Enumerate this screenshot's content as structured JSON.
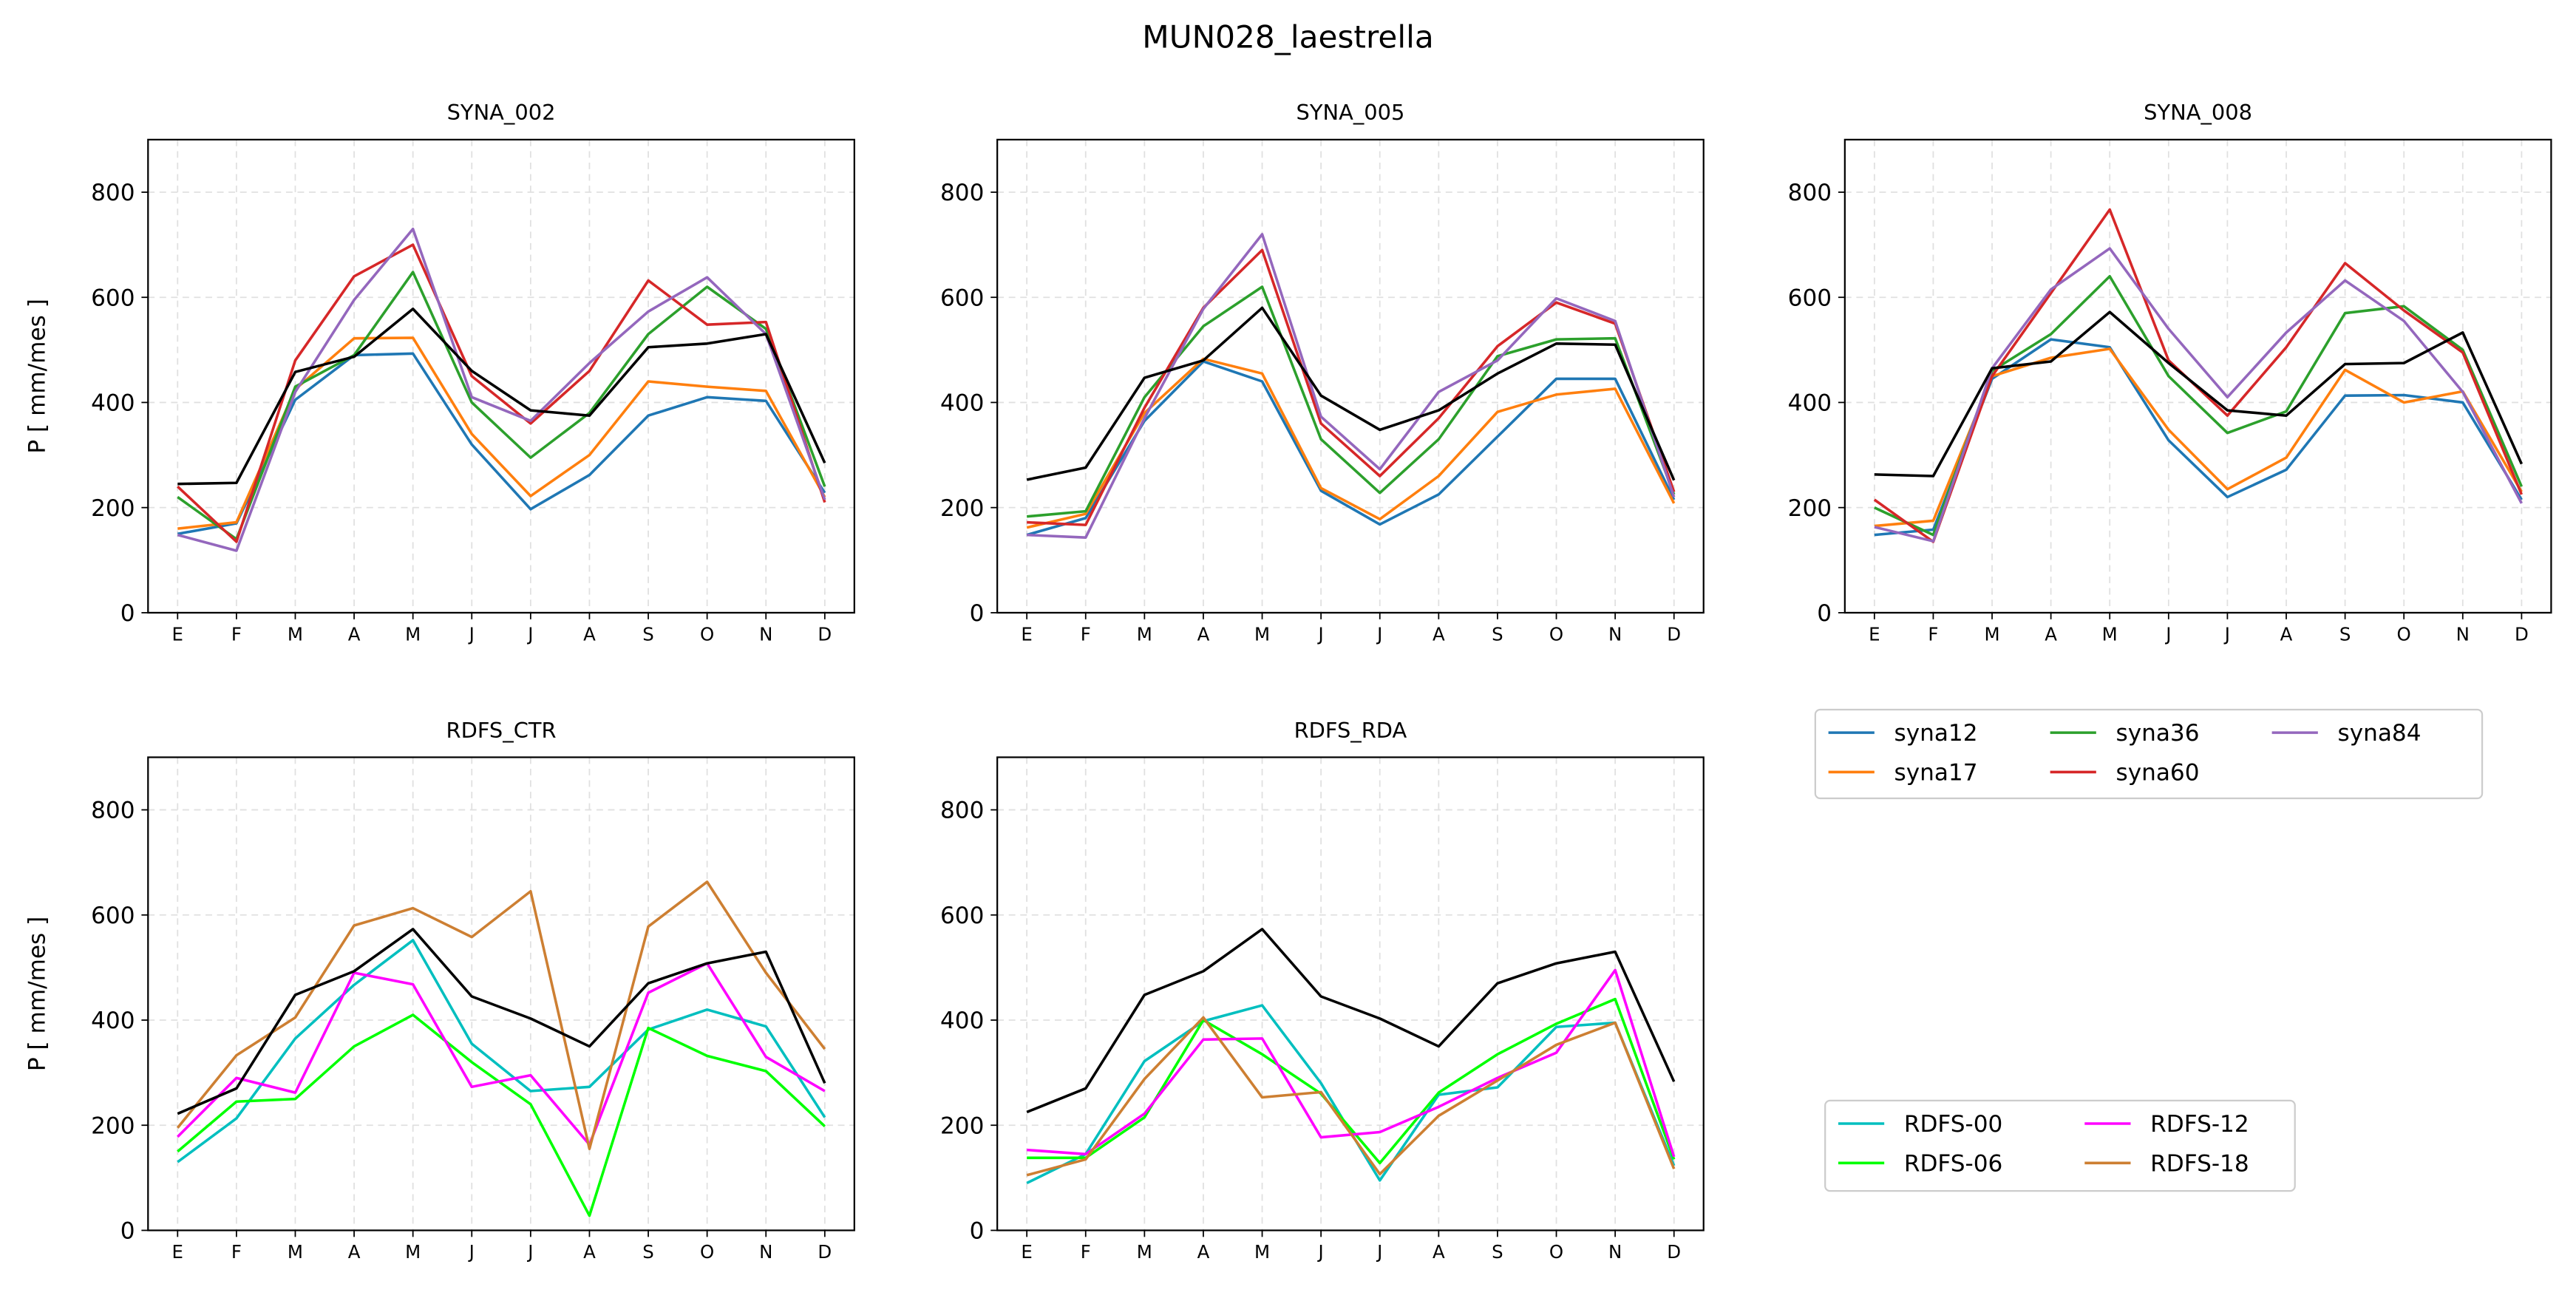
{
  "figure_title": "MUN028_laestrella",
  "colors": {
    "syna12": "#1f77b4",
    "syna17": "#ff7f0e",
    "syna36": "#2ca02c",
    "syna60": "#d62728",
    "syna84": "#9467bd",
    "RDFS-00": "#00bfbf",
    "RDFS-06": "#00ff00",
    "RDFS-12": "#ff00ff",
    "RDFS-18": "#cd7f32",
    "reference": "#000000"
  },
  "legends": [
    {
      "entries": [
        "syna12",
        "syna17",
        "syna36",
        "syna60",
        "syna84"
      ],
      "ncol": 3
    },
    {
      "entries": [
        "RDFS-00",
        "RDFS-06",
        "RDFS-12",
        "RDFS-18"
      ],
      "ncol": 2
    }
  ],
  "chart_data": [
    {
      "type": "line",
      "title": "SYNA_002",
      "ylabel": "P [ mm/mes ]",
      "ylim": [
        0,
        900
      ],
      "yticks": [
        0,
        200,
        400,
        600,
        800
      ],
      "grid": true,
      "categories": [
        "E",
        "F",
        "M",
        "A",
        "M",
        "J",
        "J",
        "A",
        "S",
        "O",
        "N",
        "D"
      ],
      "series": [
        {
          "name": "syna12",
          "values": [
            150,
            170,
            405,
            490,
            493,
            320,
            197,
            262,
            375,
            410,
            403,
            228
          ]
        },
        {
          "name": "syna17",
          "values": [
            160,
            172,
            425,
            522,
            523,
            340,
            222,
            300,
            440,
            430,
            422,
            220
          ]
        },
        {
          "name": "syna36",
          "values": [
            220,
            140,
            430,
            490,
            648,
            400,
            295,
            380,
            530,
            620,
            540,
            240
          ]
        },
        {
          "name": "syna60",
          "values": [
            240,
            135,
            480,
            640,
            700,
            450,
            360,
            460,
            632,
            548,
            553,
            210
          ]
        },
        {
          "name": "syna84",
          "values": [
            148,
            118,
            420,
            595,
            730,
            410,
            365,
            475,
            573,
            638,
            530,
            215
          ]
        },
        {
          "values": [
            245,
            247,
            458,
            487,
            578,
            460,
            385,
            375,
            505,
            512,
            530,
            285
          ],
          "color": "reference"
        }
      ]
    },
    {
      "type": "line",
      "title": "SYNA_005",
      "ylabel": "",
      "ylim": [
        0,
        900
      ],
      "yticks": [
        0,
        200,
        400,
        600,
        800
      ],
      "grid": true,
      "categories": [
        "E",
        "F",
        "M",
        "A",
        "M",
        "J",
        "J",
        "A",
        "S",
        "O",
        "N",
        "D"
      ],
      "series": [
        {
          "name": "syna12",
          "values": [
            148,
            180,
            365,
            478,
            440,
            232,
            168,
            225,
            335,
            445,
            445,
            215
          ]
        },
        {
          "name": "syna17",
          "values": [
            162,
            188,
            380,
            483,
            455,
            237,
            178,
            260,
            382,
            415,
            426,
            208
          ]
        },
        {
          "name": "syna36",
          "values": [
            183,
            193,
            410,
            545,
            620,
            330,
            228,
            330,
            488,
            520,
            522,
            225
          ]
        },
        {
          "name": "syna60",
          "values": [
            172,
            167,
            390,
            580,
            690,
            360,
            260,
            370,
            507,
            590,
            550,
            230
          ]
        },
        {
          "name": "syna84",
          "values": [
            148,
            143,
            370,
            578,
            720,
            373,
            273,
            420,
            480,
            598,
            555,
            220
          ]
        },
        {
          "values": [
            253,
            276,
            447,
            480,
            580,
            413,
            348,
            385,
            455,
            512,
            510,
            252
          ],
          "color": "reference"
        }
      ]
    },
    {
      "type": "line",
      "title": "SYNA_008",
      "ylabel": "",
      "ylim": [
        0,
        900
      ],
      "yticks": [
        0,
        200,
        400,
        600,
        800
      ],
      "grid": true,
      "categories": [
        "E",
        "F",
        "M",
        "A",
        "M",
        "J",
        "J",
        "A",
        "S",
        "O",
        "N",
        "D"
      ],
      "series": [
        {
          "name": "syna12",
          "values": [
            148,
            158,
            445,
            520,
            505,
            328,
            220,
            272,
            413,
            414,
            400,
            215
          ]
        },
        {
          "name": "syna17",
          "values": [
            165,
            175,
            450,
            485,
            502,
            348,
            235,
            295,
            462,
            400,
            421,
            230
          ]
        },
        {
          "name": "syna36",
          "values": [
            200,
            148,
            460,
            530,
            640,
            450,
            342,
            383,
            570,
            583,
            500,
            240
          ]
        },
        {
          "name": "syna60",
          "values": [
            215,
            135,
            450,
            608,
            767,
            480,
            375,
            505,
            665,
            575,
            495,
            225
          ]
        },
        {
          "name": "syna84",
          "values": [
            163,
            136,
            465,
            615,
            693,
            540,
            410,
            533,
            632,
            555,
            420,
            208
          ]
        },
        {
          "values": [
            263,
            260,
            465,
            478,
            572,
            475,
            385,
            375,
            473,
            475,
            533,
            283
          ],
          "color": "reference"
        }
      ]
    },
    {
      "type": "line",
      "title": "RDFS_CTR",
      "ylabel": "P [ mm/mes ]",
      "ylim": [
        0,
        900
      ],
      "yticks": [
        0,
        200,
        400,
        600,
        800
      ],
      "grid": true,
      "categories": [
        "E",
        "F",
        "M",
        "A",
        "M",
        "J",
        "J",
        "A",
        "S",
        "O",
        "N",
        "D"
      ],
      "series": [
        {
          "name": "RDFS-00",
          "values": [
            130,
            213,
            365,
            467,
            552,
            355,
            265,
            273,
            382,
            420,
            388,
            215
          ]
        },
        {
          "name": "RDFS-06",
          "values": [
            150,
            245,
            250,
            350,
            410,
            320,
            240,
            28,
            385,
            332,
            303,
            198
          ]
        },
        {
          "name": "RDFS-12",
          "values": [
            178,
            290,
            262,
            490,
            468,
            273,
            295,
            163,
            452,
            508,
            330,
            265
          ]
        },
        {
          "name": "RDFS-18",
          "values": [
            195,
            333,
            405,
            580,
            613,
            558,
            645,
            155,
            578,
            663,
            490,
            345
          ]
        },
        {
          "values": [
            222,
            270,
            448,
            493,
            573,
            445,
            403,
            350,
            470,
            508,
            530,
            280
          ],
          "color": "reference"
        }
      ]
    },
    {
      "type": "line",
      "title": "RDFS_RDA",
      "ylabel": "",
      "ylim": [
        0,
        900
      ],
      "yticks": [
        0,
        200,
        400,
        600,
        800
      ],
      "grid": true,
      "categories": [
        "E",
        "F",
        "M",
        "A",
        "M",
        "J",
        "J",
        "A",
        "S",
        "O",
        "N",
        "D"
      ],
      "series": [
        {
          "name": "RDFS-00",
          "values": [
            90,
            145,
            322,
            398,
            428,
            280,
            95,
            258,
            272,
            387,
            395,
            123
          ]
        },
        {
          "name": "RDFS-06",
          "values": [
            138,
            138,
            215,
            400,
            335,
            260,
            128,
            262,
            335,
            393,
            440,
            135
          ]
        },
        {
          "name": "RDFS-12",
          "values": [
            153,
            145,
            222,
            363,
            365,
            177,
            187,
            235,
            290,
            338,
            495,
            140
          ]
        },
        {
          "name": "RDFS-18",
          "values": [
            105,
            135,
            288,
            405,
            253,
            263,
            107,
            218,
            285,
            353,
            395,
            117
          ]
        },
        {
          "values": [
            225,
            270,
            448,
            493,
            573,
            445,
            403,
            350,
            470,
            508,
            530,
            283
          ],
          "color": "reference"
        }
      ]
    }
  ]
}
